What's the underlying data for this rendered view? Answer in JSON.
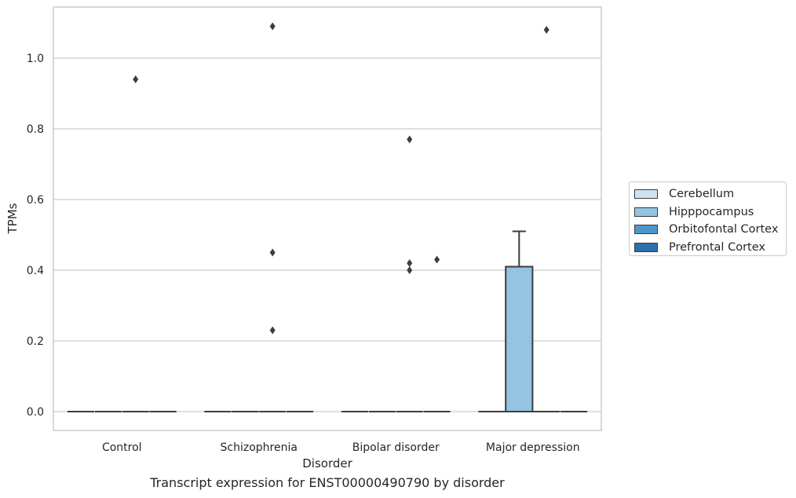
{
  "chart_data": {
    "type": "box",
    "caption": "Transcript expression for ENST00000490790 by disorder",
    "xlabel": "Disorder",
    "ylabel": "TPMs",
    "categories": [
      "Control",
      "Schizophrenia",
      "Bipolar disorder",
      "Major depression"
    ],
    "yticks": [
      "0.0",
      "0.2",
      "0.4",
      "0.6",
      "0.8",
      "1.0"
    ],
    "ylim": [
      -0.055,
      1.145
    ],
    "grid": true,
    "legend_position": "right",
    "series": [
      {
        "name": "Cerebellum",
        "color": "#d0e1f2"
      },
      {
        "name": "Hipppocampus",
        "color": "#94c4df"
      },
      {
        "name": "Orbitofontal Cortex",
        "color": "#4a98c9"
      },
      {
        "name": "Prefrontal Cortex",
        "color": "#2b6fab"
      }
    ],
    "boxes": [
      {
        "category": "Control",
        "series": "Cerebellum",
        "q1": 0,
        "median": 0,
        "q3": 0,
        "whisker_low": 0,
        "whisker_high": 0
      },
      {
        "category": "Control",
        "series": "Hipppocampus",
        "q1": 0,
        "median": 0,
        "q3": 0,
        "whisker_low": 0,
        "whisker_high": 0
      },
      {
        "category": "Control",
        "series": "Orbitofontal Cortex",
        "q1": 0,
        "median": 0,
        "q3": 0,
        "whisker_low": 0,
        "whisker_high": 0
      },
      {
        "category": "Control",
        "series": "Prefrontal Cortex",
        "q1": 0,
        "median": 0,
        "q3": 0,
        "whisker_low": 0,
        "whisker_high": 0
      },
      {
        "category": "Schizophrenia",
        "series": "Cerebellum",
        "q1": 0,
        "median": 0,
        "q3": 0,
        "whisker_low": 0,
        "whisker_high": 0
      },
      {
        "category": "Schizophrenia",
        "series": "Hipppocampus",
        "q1": 0,
        "median": 0,
        "q3": 0,
        "whisker_low": 0,
        "whisker_high": 0
      },
      {
        "category": "Schizophrenia",
        "series": "Orbitofontal Cortex",
        "q1": 0,
        "median": 0,
        "q3": 0,
        "whisker_low": 0,
        "whisker_high": 0
      },
      {
        "category": "Schizophrenia",
        "series": "Prefrontal Cortex",
        "q1": 0,
        "median": 0,
        "q3": 0,
        "whisker_low": 0,
        "whisker_high": 0
      },
      {
        "category": "Bipolar disorder",
        "series": "Cerebellum",
        "q1": 0,
        "median": 0,
        "q3": 0,
        "whisker_low": 0,
        "whisker_high": 0
      },
      {
        "category": "Bipolar disorder",
        "series": "Hipppocampus",
        "q1": 0,
        "median": 0,
        "q3": 0,
        "whisker_low": 0,
        "whisker_high": 0
      },
      {
        "category": "Bipolar disorder",
        "series": "Orbitofontal Cortex",
        "q1": 0,
        "median": 0,
        "q3": 0,
        "whisker_low": 0,
        "whisker_high": 0
      },
      {
        "category": "Bipolar disorder",
        "series": "Prefrontal Cortex",
        "q1": 0,
        "median": 0,
        "q3": 0,
        "whisker_low": 0,
        "whisker_high": 0
      },
      {
        "category": "Major depression",
        "series": "Cerebellum",
        "q1": 0,
        "median": 0,
        "q3": 0,
        "whisker_low": 0,
        "whisker_high": 0
      },
      {
        "category": "Major depression",
        "series": "Hipppocampus",
        "q1": 0,
        "median": 0,
        "q3": 0.41,
        "whisker_low": 0,
        "whisker_high": 0.51
      },
      {
        "category": "Major depression",
        "series": "Orbitofontal Cortex",
        "q1": 0,
        "median": 0,
        "q3": 0,
        "whisker_low": 0,
        "whisker_high": 0
      },
      {
        "category": "Major depression",
        "series": "Prefrontal Cortex",
        "q1": 0,
        "median": 0,
        "q3": 0,
        "whisker_low": 0,
        "whisker_high": 0
      }
    ],
    "outliers": [
      {
        "category": "Control",
        "series": "Orbitofontal Cortex",
        "value": 0.94
      },
      {
        "category": "Schizophrenia",
        "series": "Orbitofontal Cortex",
        "value": 1.09
      },
      {
        "category": "Schizophrenia",
        "series": "Orbitofontal Cortex",
        "value": 0.45
      },
      {
        "category": "Schizophrenia",
        "series": "Orbitofontal Cortex",
        "value": 0.23
      },
      {
        "category": "Bipolar disorder",
        "series": "Orbitofontal Cortex",
        "value": 0.77
      },
      {
        "category": "Bipolar disorder",
        "series": "Orbitofontal Cortex",
        "value": 0.42
      },
      {
        "category": "Bipolar disorder",
        "series": "Orbitofontal Cortex",
        "value": 0.4
      },
      {
        "category": "Bipolar disorder",
        "series": "Prefrontal Cortex",
        "value": 0.43
      },
      {
        "category": "Major depression",
        "series": "Orbitofontal Cortex",
        "value": 1.08
      }
    ]
  }
}
